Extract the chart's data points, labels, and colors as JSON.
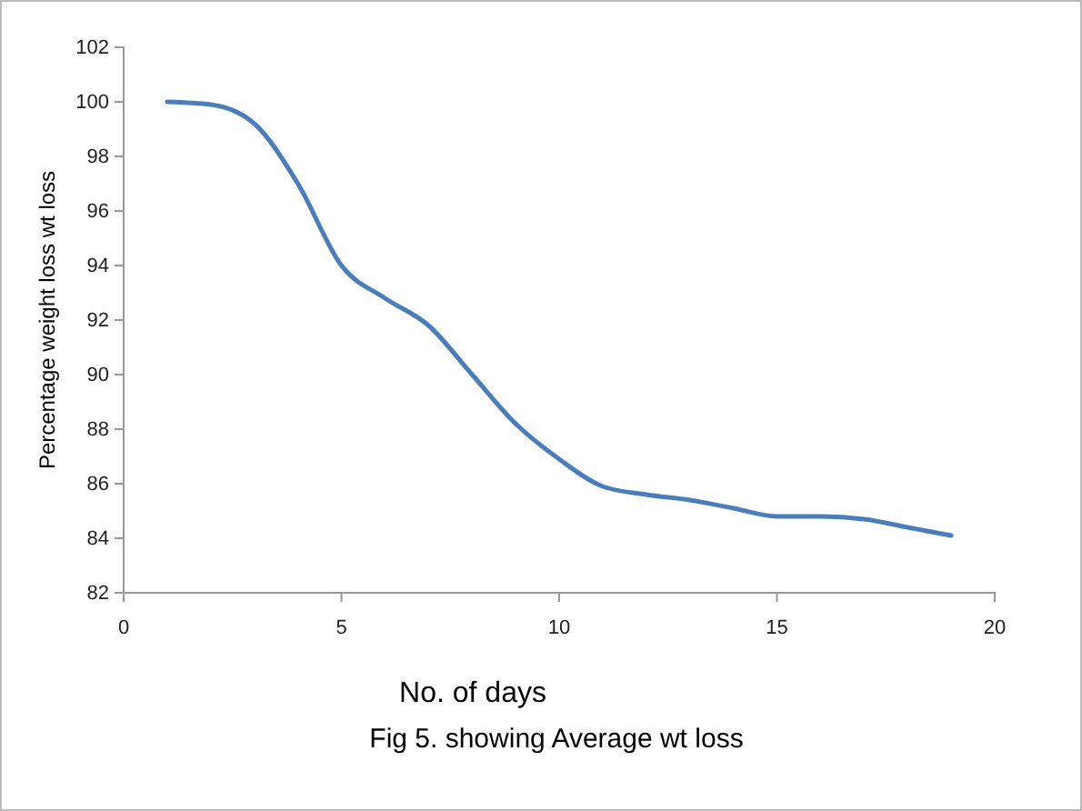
{
  "chart_data": {
    "type": "line",
    "xlabel": "No. of days",
    "ylabel": "Percentage weight loss wt loss",
    "annotations": [
      "Fig 5. showing Average wt loss"
    ],
    "x": [
      1,
      2,
      3,
      4,
      5,
      6,
      7,
      8,
      9,
      10,
      11,
      12,
      13,
      14,
      15,
      16,
      17,
      18,
      19
    ],
    "series": [
      {
        "color": "#4a7ebb",
        "values": [
          100,
          99.9,
          99.2,
          97,
          94,
          92.8,
          91.8,
          90,
          88.2,
          86.9,
          85.9,
          85.6,
          85.4,
          85.1,
          84.8,
          84.8,
          84.7,
          84.4,
          84.1
        ]
      }
    ],
    "xlim": [
      0,
      20
    ],
    "xticks": [
      0,
      5,
      10,
      15,
      20
    ],
    "ylim": [
      82,
      102
    ],
    "yticks": [
      82,
      84,
      86,
      88,
      90,
      92,
      94,
      96,
      98,
      100,
      102
    ],
    "grid": false,
    "marker": "none",
    "line_style": "solid"
  }
}
